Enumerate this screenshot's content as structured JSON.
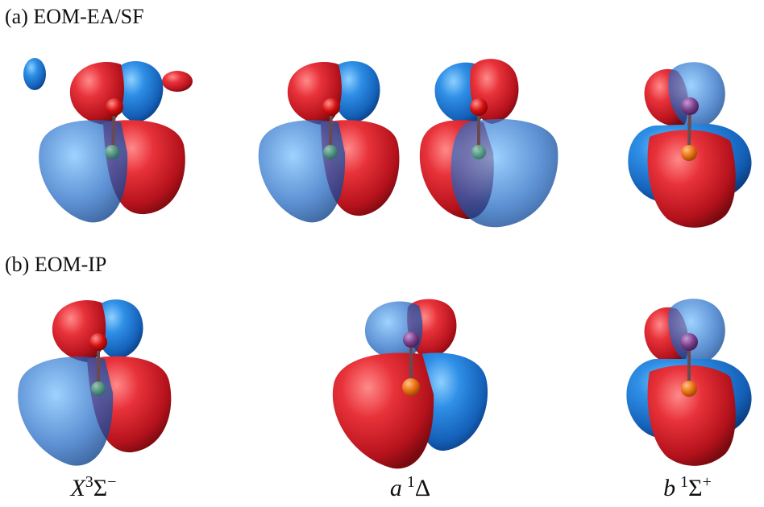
{
  "panels": {
    "a": {
      "label": "(a) EOM-EA/SF"
    },
    "b": {
      "label": "(b) EOM-IP"
    }
  },
  "states": [
    {
      "letter": "X",
      "mult": "3",
      "term": "Σ",
      "sign": "−"
    },
    {
      "letter": "a",
      "mult": "1",
      "term": "Δ",
      "sign": ""
    },
    {
      "letter": "b",
      "mult": "1",
      "term": "Σ",
      "sign": "+"
    }
  ],
  "colors": {
    "positive_lobe": "#d9252c",
    "negative_lobe": "#1f78d1",
    "atom_top": "#d41010",
    "atom_bottom_green": "#3a9a6a",
    "atom_bottom_orange": "#e0700f"
  }
}
